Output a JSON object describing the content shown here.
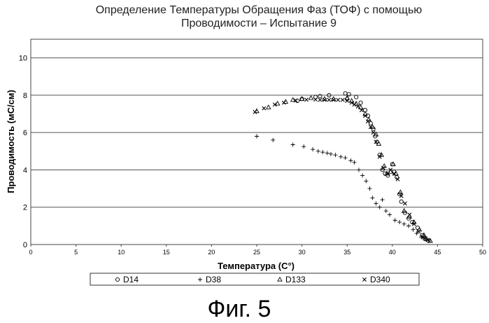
{
  "chart_data": {
    "type": "scatter",
    "title": [
      "Определение Температуры Обращения Фаз (ТОФ) с помощью",
      "Проводимости – Испытание 9"
    ],
    "xlabel": "Температура (С°)",
    "ylabel": "Проводимость (мС/см)",
    "xlim": [
      0,
      50
    ],
    "ylim": [
      0,
      11
    ],
    "x_ticks": [
      "0",
      "5",
      "10",
      "15",
      "20",
      "25",
      "30",
      "35",
      "40",
      "45",
      "50"
    ],
    "y_ticks": [
      "0",
      "2",
      "4",
      "6",
      "8",
      "10"
    ],
    "grid": "horizontal",
    "legend_position": "bottom",
    "series": [
      {
        "name": "D14",
        "marker": "circle",
        "points": [
          [
            29.5,
            7.7
          ],
          [
            30,
            7.8
          ],
          [
            31.5,
            7.9
          ],
          [
            32,
            7.95
          ],
          [
            33,
            8.0
          ],
          [
            34.8,
            8.1
          ],
          [
            35.2,
            8.05
          ],
          [
            35,
            7.8
          ],
          [
            36,
            7.9
          ],
          [
            36.5,
            7.6
          ],
          [
            37,
            7.2
          ],
          [
            37.3,
            6.9
          ],
          [
            37.6,
            6.5
          ],
          [
            37.9,
            6.2
          ],
          [
            38.1,
            5.8
          ],
          [
            38.3,
            5.5
          ],
          [
            38.6,
            4.8
          ],
          [
            38.9,
            4.0
          ],
          [
            39.2,
            3.8
          ],
          [
            39.5,
            3.7
          ],
          [
            40.0,
            4.3
          ],
          [
            40.2,
            3.9
          ],
          [
            40.5,
            3.6
          ],
          [
            40.8,
            2.7
          ],
          [
            41.0,
            2.3
          ],
          [
            41.4,
            1.7
          ],
          [
            41.8,
            1.4
          ],
          [
            42.2,
            1.2
          ],
          [
            42.8,
            0.9
          ],
          [
            43.3,
            0.5
          ],
          [
            43.6,
            0.3
          ],
          [
            44.0,
            0.2
          ]
        ]
      },
      {
        "name": "D38",
        "marker": "plus",
        "points": [
          [
            25,
            5.8
          ],
          [
            26.8,
            5.6
          ],
          [
            29,
            5.35
          ],
          [
            30.2,
            5.25
          ],
          [
            31.2,
            5.1
          ],
          [
            31.8,
            5.0
          ],
          [
            32.3,
            4.95
          ],
          [
            32.8,
            4.9
          ],
          [
            33.2,
            4.85
          ],
          [
            33.7,
            4.8
          ],
          [
            34.3,
            4.7
          ],
          [
            34.8,
            4.65
          ],
          [
            35.4,
            4.5
          ],
          [
            35.8,
            4.4
          ],
          [
            36.3,
            4.0
          ],
          [
            36.7,
            3.7
          ],
          [
            37.1,
            3.4
          ],
          [
            37.5,
            3.0
          ],
          [
            37.8,
            2.5
          ],
          [
            38.2,
            2.2
          ],
          [
            38.6,
            2.0
          ],
          [
            38.9,
            2.4
          ],
          [
            39.3,
            1.8
          ],
          [
            39.7,
            1.6
          ],
          [
            40.3,
            1.3
          ],
          [
            40.8,
            1.2
          ],
          [
            41.3,
            1.1
          ],
          [
            41.8,
            1.0
          ],
          [
            42.3,
            0.8
          ],
          [
            42.7,
            0.6
          ],
          [
            43.2,
            0.4
          ],
          [
            43.6,
            0.3
          ]
        ]
      },
      {
        "name": "D133",
        "marker": "triangle",
        "points": [
          [
            25,
            7.15
          ],
          [
            26.3,
            7.35
          ],
          [
            27.3,
            7.55
          ],
          [
            28.2,
            7.65
          ],
          [
            29.0,
            7.75
          ],
          [
            30.0,
            7.8
          ],
          [
            31.0,
            7.85
          ],
          [
            32.5,
            7.8
          ],
          [
            33.5,
            7.8
          ],
          [
            35.0,
            7.85
          ],
          [
            35.5,
            7.7
          ],
          [
            36.0,
            7.55
          ],
          [
            36.5,
            7.35
          ],
          [
            37.0,
            7.0
          ],
          [
            37.4,
            6.7
          ],
          [
            37.8,
            6.3
          ],
          [
            38.2,
            5.9
          ],
          [
            38.5,
            5.4
          ],
          [
            38.8,
            4.8
          ],
          [
            39.1,
            4.2
          ],
          [
            39.4,
            3.8
          ],
          [
            39.8,
            3.9
          ],
          [
            40.1,
            4.3
          ],
          [
            40.4,
            3.8
          ],
          [
            40.9,
            2.8
          ],
          [
            41.3,
            1.8
          ],
          [
            41.9,
            1.5
          ],
          [
            42.4,
            1.2
          ],
          [
            43.0,
            0.8
          ],
          [
            43.5,
            0.5
          ],
          [
            43.8,
            0.3
          ],
          [
            44.2,
            0.2
          ]
        ]
      },
      {
        "name": "D340",
        "marker": "x",
        "points": [
          [
            24.8,
            7.1
          ],
          [
            25.8,
            7.3
          ],
          [
            27.0,
            7.5
          ],
          [
            28.0,
            7.6
          ],
          [
            29.3,
            7.72
          ],
          [
            30.5,
            7.76
          ],
          [
            31.5,
            7.77
          ],
          [
            32.0,
            7.75
          ],
          [
            32.5,
            7.75
          ],
          [
            33.0,
            7.75
          ],
          [
            33.5,
            7.75
          ],
          [
            34.0,
            7.75
          ],
          [
            34.5,
            7.75
          ],
          [
            35.0,
            7.7
          ],
          [
            35.5,
            7.6
          ],
          [
            35.8,
            7.5
          ],
          [
            36.2,
            7.4
          ],
          [
            36.6,
            7.2
          ],
          [
            37.0,
            6.9
          ],
          [
            37.3,
            6.6
          ],
          [
            37.6,
            6.3
          ],
          [
            37.9,
            6.0
          ],
          [
            38.2,
            5.5
          ],
          [
            38.6,
            4.7
          ],
          [
            39.0,
            4.1
          ],
          [
            39.5,
            3.8
          ],
          [
            39.8,
            4.0
          ],
          [
            40.2,
            3.8
          ],
          [
            40.6,
            3.5
          ],
          [
            41.0,
            2.6
          ],
          [
            41.4,
            2.2
          ],
          [
            41.9,
            1.6
          ],
          [
            42.4,
            1.1
          ],
          [
            42.9,
            0.7
          ],
          [
            43.4,
            0.4
          ],
          [
            43.9,
            0.25
          ]
        ]
      }
    ]
  },
  "caption": "Фиг. 5"
}
